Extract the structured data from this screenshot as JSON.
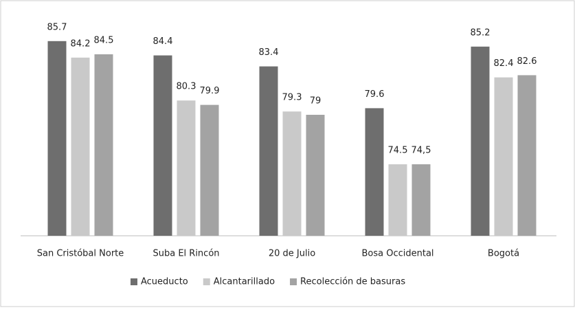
{
  "chart_data": {
    "type": "bar",
    "categories": [
      "San Cristóbal Norte",
      "Suba El Rincón",
      "20 de Julio",
      "Bosa Occidental",
      "Bogotá"
    ],
    "series": [
      {
        "name": "Acueducto",
        "color": "#6e6e6e",
        "values": [
          85.7,
          84.4,
          83.4,
          79.6,
          85.2
        ]
      },
      {
        "name": "Alcantarillado",
        "color": "#c9c9c9",
        "values": [
          84.2,
          80.3,
          79.3,
          74.5,
          82.4
        ]
      },
      {
        "name": "Recolección de basuras",
        "color": "#a3a3a3",
        "values": [
          84.5,
          79.9,
          79,
          74.5,
          82.6
        ],
        "value_labels": [
          "84.5",
          "79.9",
          "79",
          "74,5",
          "82.6"
        ]
      }
    ],
    "ylim": [
      68,
      88
    ],
    "legend": "bottom"
  }
}
